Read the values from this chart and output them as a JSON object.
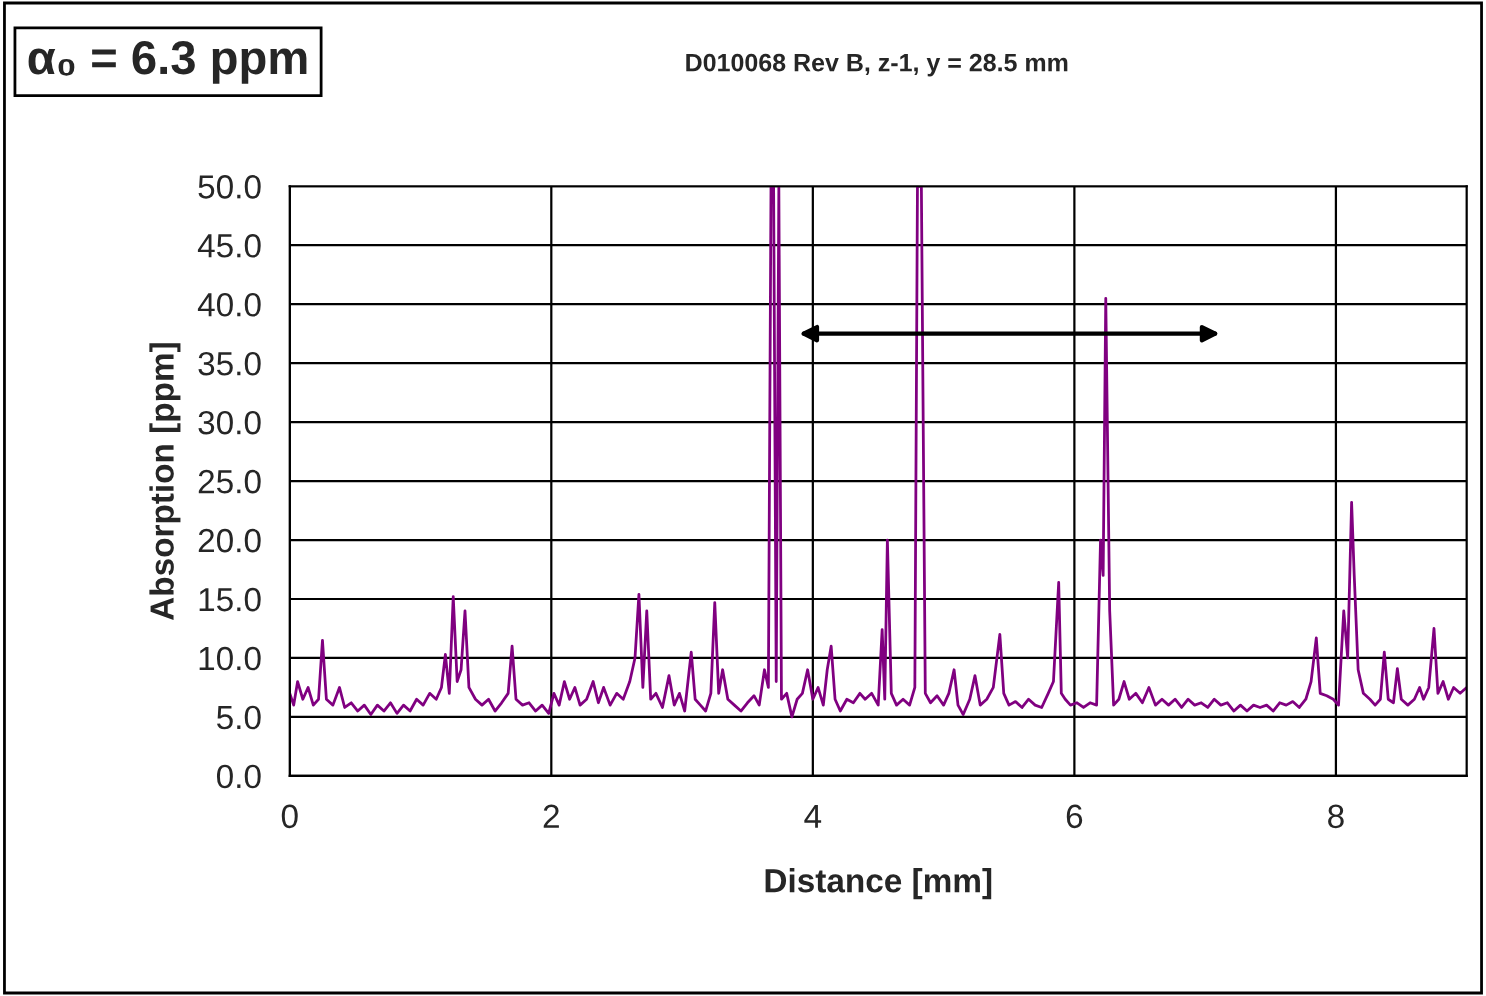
{
  "chart_data": {
    "type": "line",
    "title": "D010068 Rev B, z-1, y = 28.5 mm",
    "xlabel": "Distance [mm]",
    "ylabel": "Absorption [ppm]",
    "annotations": [
      "α₀ = 6.3 ppm"
    ],
    "xlim": [
      0,
      9.0
    ],
    "xticks": [
      0,
      2,
      4,
      6,
      8
    ],
    "ylim": [
      0,
      50
    ],
    "yticks": [
      {
        "value": 0,
        "label": "0.0"
      },
      {
        "value": 5,
        "label": "5.0"
      },
      {
        "value": 10,
        "label": "10.0"
      },
      {
        "value": 15,
        "label": "15.0"
      },
      {
        "value": 20,
        "label": "20.0"
      },
      {
        "value": 25,
        "label": "25.0"
      },
      {
        "value": 30,
        "label": "30.0"
      },
      {
        "value": 35,
        "label": "35.0"
      },
      {
        "value": 40,
        "label": "40.0"
      },
      {
        "value": 45,
        "label": "45.0"
      },
      {
        "value": 50,
        "label": "50.0"
      }
    ],
    "grid": true,
    "legend": false,
    "marker": "none",
    "line_style": "solid",
    "series": [
      {
        "color": "#800080",
        "x": [
          0.0,
          0.03,
          0.06,
          0.1,
          0.14,
          0.18,
          0.22,
          0.25,
          0.28,
          0.33,
          0.38,
          0.42,
          0.47,
          0.52,
          0.57,
          0.62,
          0.67,
          0.72,
          0.77,
          0.82,
          0.87,
          0.92,
          0.97,
          1.02,
          1.07,
          1.12,
          1.16,
          1.19,
          1.22,
          1.25,
          1.28,
          1.31,
          1.34,
          1.37,
          1.42,
          1.47,
          1.52,
          1.57,
          1.62,
          1.67,
          1.7,
          1.73,
          1.78,
          1.83,
          1.88,
          1.93,
          1.98,
          2.02,
          2.06,
          2.1,
          2.14,
          2.18,
          2.22,
          2.27,
          2.32,
          2.36,
          2.4,
          2.45,
          2.5,
          2.55,
          2.6,
          2.64,
          2.67,
          2.7,
          2.73,
          2.76,
          2.8,
          2.85,
          2.9,
          2.94,
          2.98,
          3.02,
          3.07,
          3.1,
          3.14,
          3.18,
          3.22,
          3.25,
          3.28,
          3.31,
          3.35,
          3.4,
          3.45,
          3.5,
          3.55,
          3.59,
          3.63,
          3.66,
          3.68,
          3.7,
          3.72,
          3.74,
          3.76,
          3.8,
          3.84,
          3.88,
          3.92,
          3.96,
          4.0,
          4.04,
          4.08,
          4.11,
          4.14,
          4.17,
          4.21,
          4.26,
          4.31,
          4.36,
          4.4,
          4.45,
          4.5,
          4.53,
          4.55,
          4.57,
          4.6,
          4.64,
          4.69,
          4.74,
          4.78,
          4.8,
          4.83,
          4.86,
          4.9,
          4.95,
          5.0,
          5.04,
          5.08,
          5.11,
          5.15,
          5.2,
          5.24,
          5.28,
          5.33,
          5.38,
          5.43,
          5.46,
          5.5,
          5.55,
          5.6,
          5.65,
          5.7,
          5.75,
          5.8,
          5.84,
          5.88,
          5.9,
          5.93,
          5.97,
          6.02,
          6.07,
          6.12,
          6.17,
          6.2,
          6.22,
          6.24,
          6.27,
          6.3,
          6.34,
          6.38,
          6.42,
          6.47,
          6.52,
          6.57,
          6.62,
          6.67,
          6.72,
          6.77,
          6.82,
          6.87,
          6.92,
          6.97,
          7.02,
          7.07,
          7.12,
          7.17,
          7.22,
          7.27,
          7.32,
          7.37,
          7.42,
          7.47,
          7.52,
          7.57,
          7.62,
          7.67,
          7.72,
          7.77,
          7.81,
          7.85,
          7.88,
          7.93,
          7.98,
          8.02,
          8.06,
          8.09,
          8.12,
          8.14,
          8.17,
          8.21,
          8.26,
          8.3,
          8.34,
          8.37,
          8.4,
          8.44,
          8.47,
          8.5,
          8.55,
          8.6,
          8.64,
          8.67,
          8.71,
          8.75,
          8.78,
          8.82,
          8.86,
          8.9,
          8.95,
          9.0
        ],
        "values": [
          7.0,
          6.0,
          8.0,
          6.5,
          7.5,
          6.0,
          6.5,
          11.5,
          6.5,
          6.0,
          7.5,
          5.8,
          6.2,
          5.5,
          6.0,
          5.2,
          6.0,
          5.5,
          6.2,
          5.3,
          6.0,
          5.5,
          6.5,
          6.0,
          7.0,
          6.5,
          7.5,
          10.3,
          7.0,
          15.2,
          8.0,
          9.0,
          14.0,
          7.5,
          6.5,
          6.0,
          6.5,
          5.5,
          6.2,
          7.0,
          11.0,
          6.5,
          6.0,
          6.2,
          5.5,
          6.0,
          5.3,
          7.0,
          6.0,
          8.0,
          6.5,
          7.5,
          6.0,
          6.5,
          8.0,
          6.2,
          7.5,
          6.0,
          7.0,
          6.5,
          8.0,
          10.0,
          15.4,
          7.5,
          14.0,
          6.5,
          7.0,
          5.8,
          8.5,
          6.0,
          7.0,
          5.5,
          10.5,
          6.5,
          6.0,
          5.5,
          7.0,
          14.7,
          7.0,
          9.0,
          6.5,
          6.0,
          5.5,
          6.2,
          6.8,
          6.0,
          9.0,
          7.5,
          50,
          50,
          8.0,
          50,
          6.5,
          7.0,
          5.0,
          6.5,
          7.0,
          9.0,
          6.5,
          7.5,
          6.0,
          9.0,
          11.0,
          6.5,
          5.5,
          6.5,
          6.2,
          7.0,
          6.5,
          7.0,
          6.0,
          12.4,
          6.5,
          20.0,
          7.0,
          6.0,
          6.5,
          6.0,
          7.5,
          50,
          50,
          7.0,
          6.2,
          6.8,
          6.0,
          7.0,
          9.0,
          6.0,
          5.2,
          6.5,
          8.5,
          6.0,
          6.5,
          7.5,
          12.0,
          7.0,
          6.0,
          6.3,
          5.8,
          6.5,
          6.0,
          5.8,
          7.0,
          8.0,
          16.4,
          7.0,
          6.5,
          6.0,
          6.2,
          5.8,
          6.2,
          6.0,
          20.0,
          17.0,
          40.5,
          14.0,
          6.0,
          6.5,
          8.0,
          6.5,
          7.0,
          6.2,
          7.5,
          6.0,
          6.5,
          6.0,
          6.5,
          5.8,
          6.5,
          6.0,
          6.2,
          5.8,
          6.5,
          6.0,
          6.2,
          5.5,
          6.0,
          5.5,
          6.0,
          5.8,
          6.0,
          5.5,
          6.2,
          6.0,
          6.3,
          5.8,
          6.5,
          8.0,
          11.7,
          7.0,
          6.8,
          6.5,
          6.0,
          14.0,
          10.0,
          23.2,
          17.0,
          9.0,
          7.0,
          6.5,
          6.0,
          6.5,
          10.5,
          6.5,
          6.2,
          9.1,
          6.5,
          6.0,
          6.5,
          7.5,
          6.5,
          7.5,
          12.5,
          7.0,
          8.0,
          6.5,
          7.5,
          7.0,
          7.5
        ]
      }
    ]
  }
}
